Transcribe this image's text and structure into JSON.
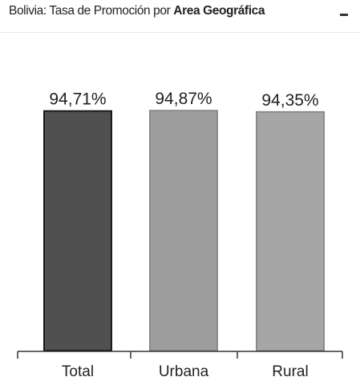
{
  "header": {
    "title_prefix": "Bolivia: Tasa de Promoción por ",
    "title_bold": "Area Geográfica",
    "collapse_icon": "minus-icon"
  },
  "colors": {
    "bar_total": "#505050",
    "bar_urbana": "#9e9e9e",
    "bar_rural": "#a6a6a6",
    "axis": "#333333"
  },
  "chart_data": {
    "type": "bar",
    "title": "Bolivia: Tasa de Promoción por Area Geográfica",
    "categories": [
      "Total",
      "Urbana",
      "Rural"
    ],
    "values": [
      94.71,
      94.87,
      94.35
    ],
    "value_labels": [
      "94,71%",
      "94,87%",
      "94,35%"
    ],
    "xlabel": "",
    "ylabel": "",
    "ylim": [
      0,
      100
    ],
    "grid": false,
    "legend": "none"
  }
}
